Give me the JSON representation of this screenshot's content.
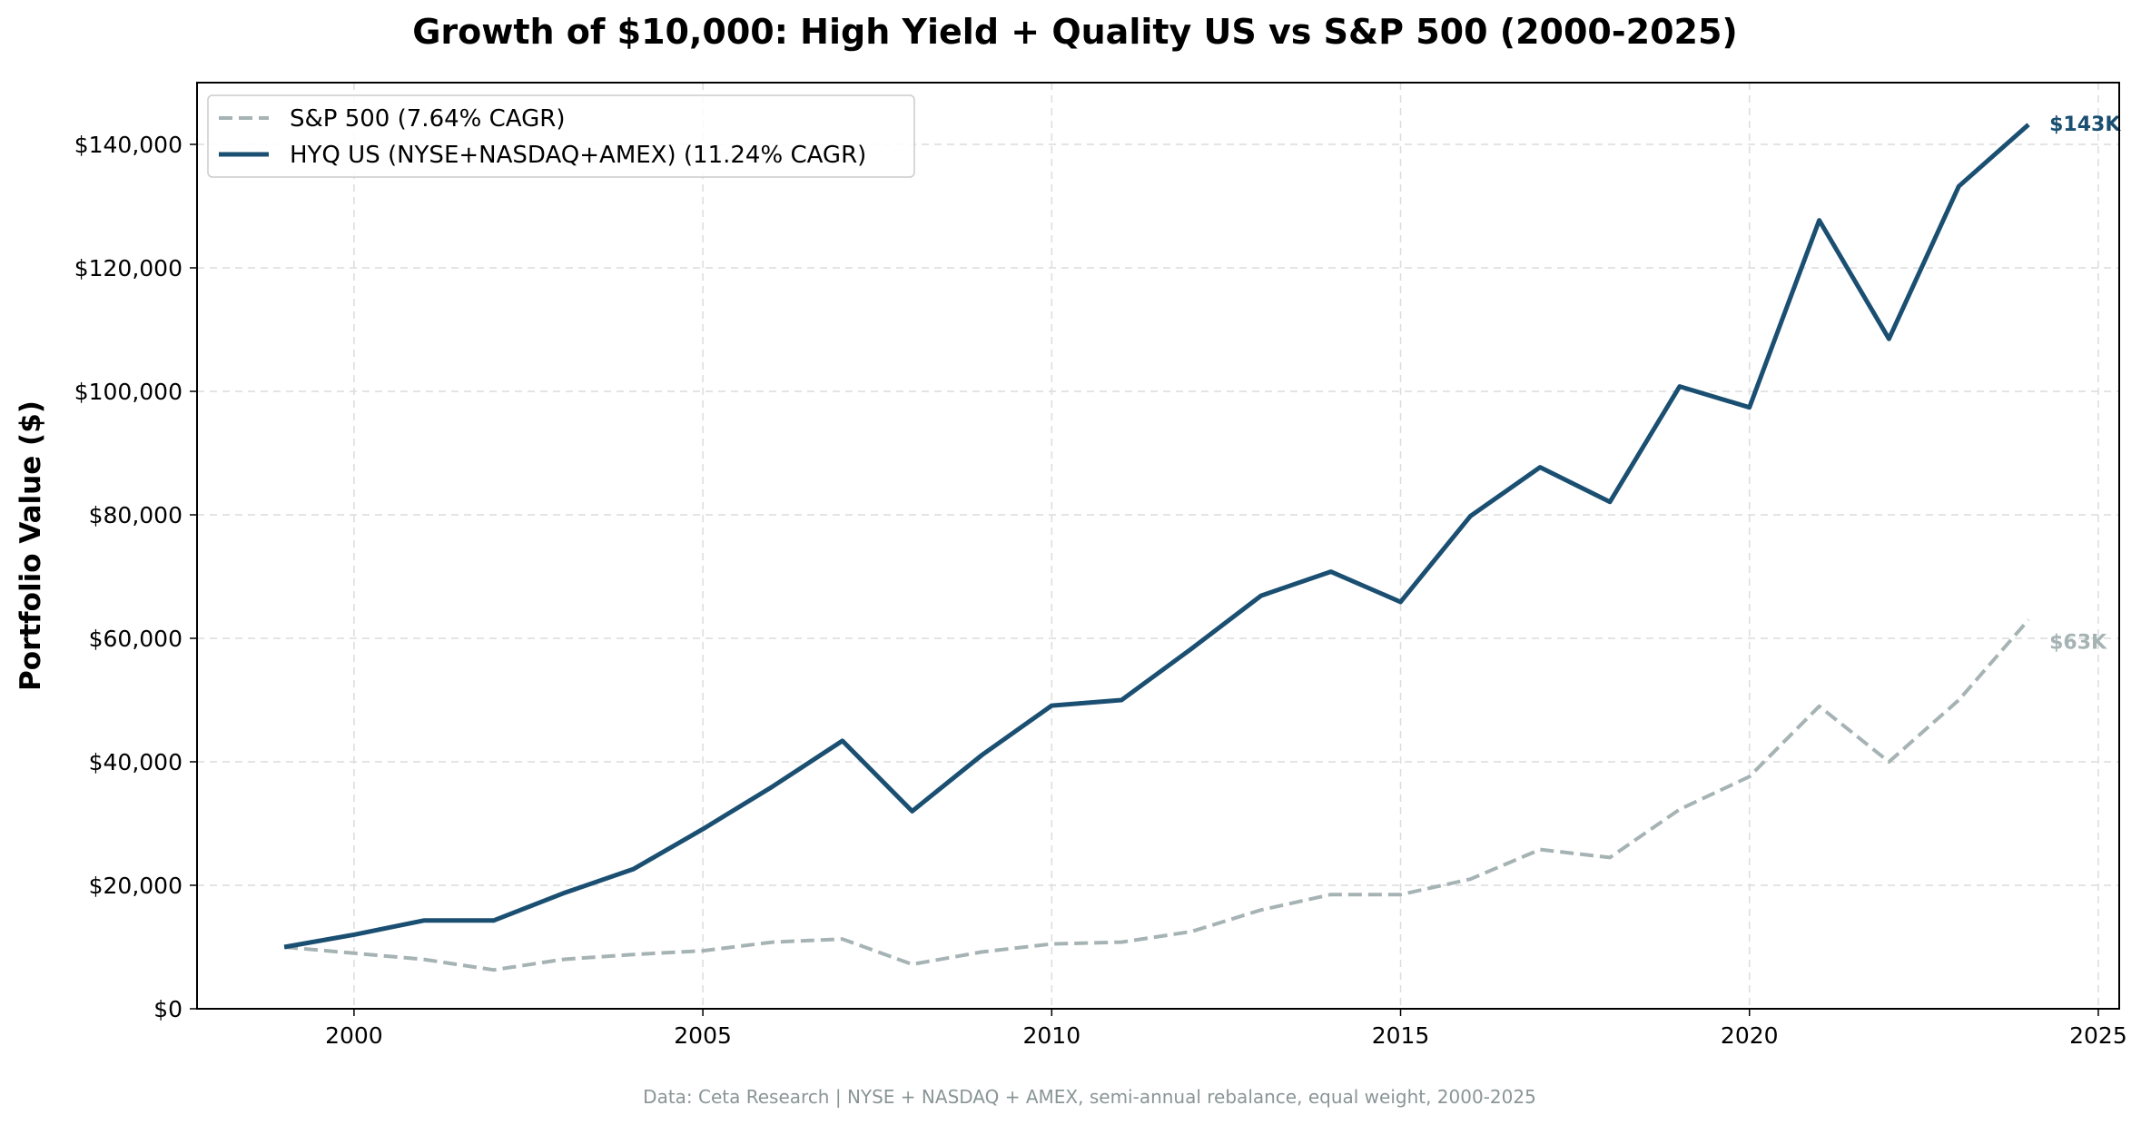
{
  "chart_data": {
    "type": "line",
    "title": "Growth of $10,000: High Yield + Quality US vs S&P 500 (2000-2025)",
    "xlabel": "",
    "ylabel": "Portfolio Value ($)",
    "xlim": [
      1997.75,
      2025.3
    ],
    "ylim": [
      0,
      150000
    ],
    "x_ticks": [
      2000,
      2005,
      2010,
      2015,
      2020,
      2025
    ],
    "x_tick_labels": [
      "2000",
      "2005",
      "2010",
      "2015",
      "2020",
      "2025"
    ],
    "y_ticks": [
      0,
      20000,
      40000,
      60000,
      80000,
      100000,
      120000,
      140000
    ],
    "y_tick_labels": [
      "$0",
      "$20,000",
      "$40,000",
      "$60,000",
      "$80,000",
      "$100,000",
      "$120,000",
      "$140,000"
    ],
    "grid": true,
    "legend_position": "top-left",
    "x": [
      1999,
      2000,
      2001,
      2002,
      2003,
      2004,
      2005,
      2006,
      2007,
      2008,
      2009,
      2010,
      2011,
      2012,
      2013,
      2014,
      2015,
      2016,
      2017,
      2018,
      2019,
      2020,
      2021,
      2022,
      2023,
      2024
    ],
    "series": [
      {
        "name": "S&P 500 (7.64% CAGR)",
        "color": "#a6b3b4",
        "style": "dashed",
        "end_label": "$63K",
        "values": [
          10000,
          9000,
          8000,
          6300,
          8000,
          8800,
          9400,
          10800,
          11300,
          7200,
          9200,
          10500,
          10800,
          12500,
          16000,
          18500,
          18500,
          21000,
          25800,
          24500,
          32300,
          37600,
          49000,
          40000,
          50000,
          63000
        ]
      },
      {
        "name": "HYQ US (NYSE+NASDAQ+AMEX) (11.24% CAGR)",
        "color": "#1a4f72",
        "style": "solid",
        "end_label": "$143K",
        "values": [
          10000,
          12000,
          14300,
          14300,
          18700,
          22600,
          29100,
          36000,
          43400,
          32000,
          41100,
          49100,
          50000,
          58300,
          66900,
          70800,
          65900,
          79800,
          87700,
          82100,
          100800,
          97400,
          127700,
          108500,
          133200,
          143200
        ]
      }
    ]
  },
  "footer": "Data: Ceta Research | NYSE + NASDAQ + AMEX, semi-annual rebalance, equal weight, 2000-2025"
}
